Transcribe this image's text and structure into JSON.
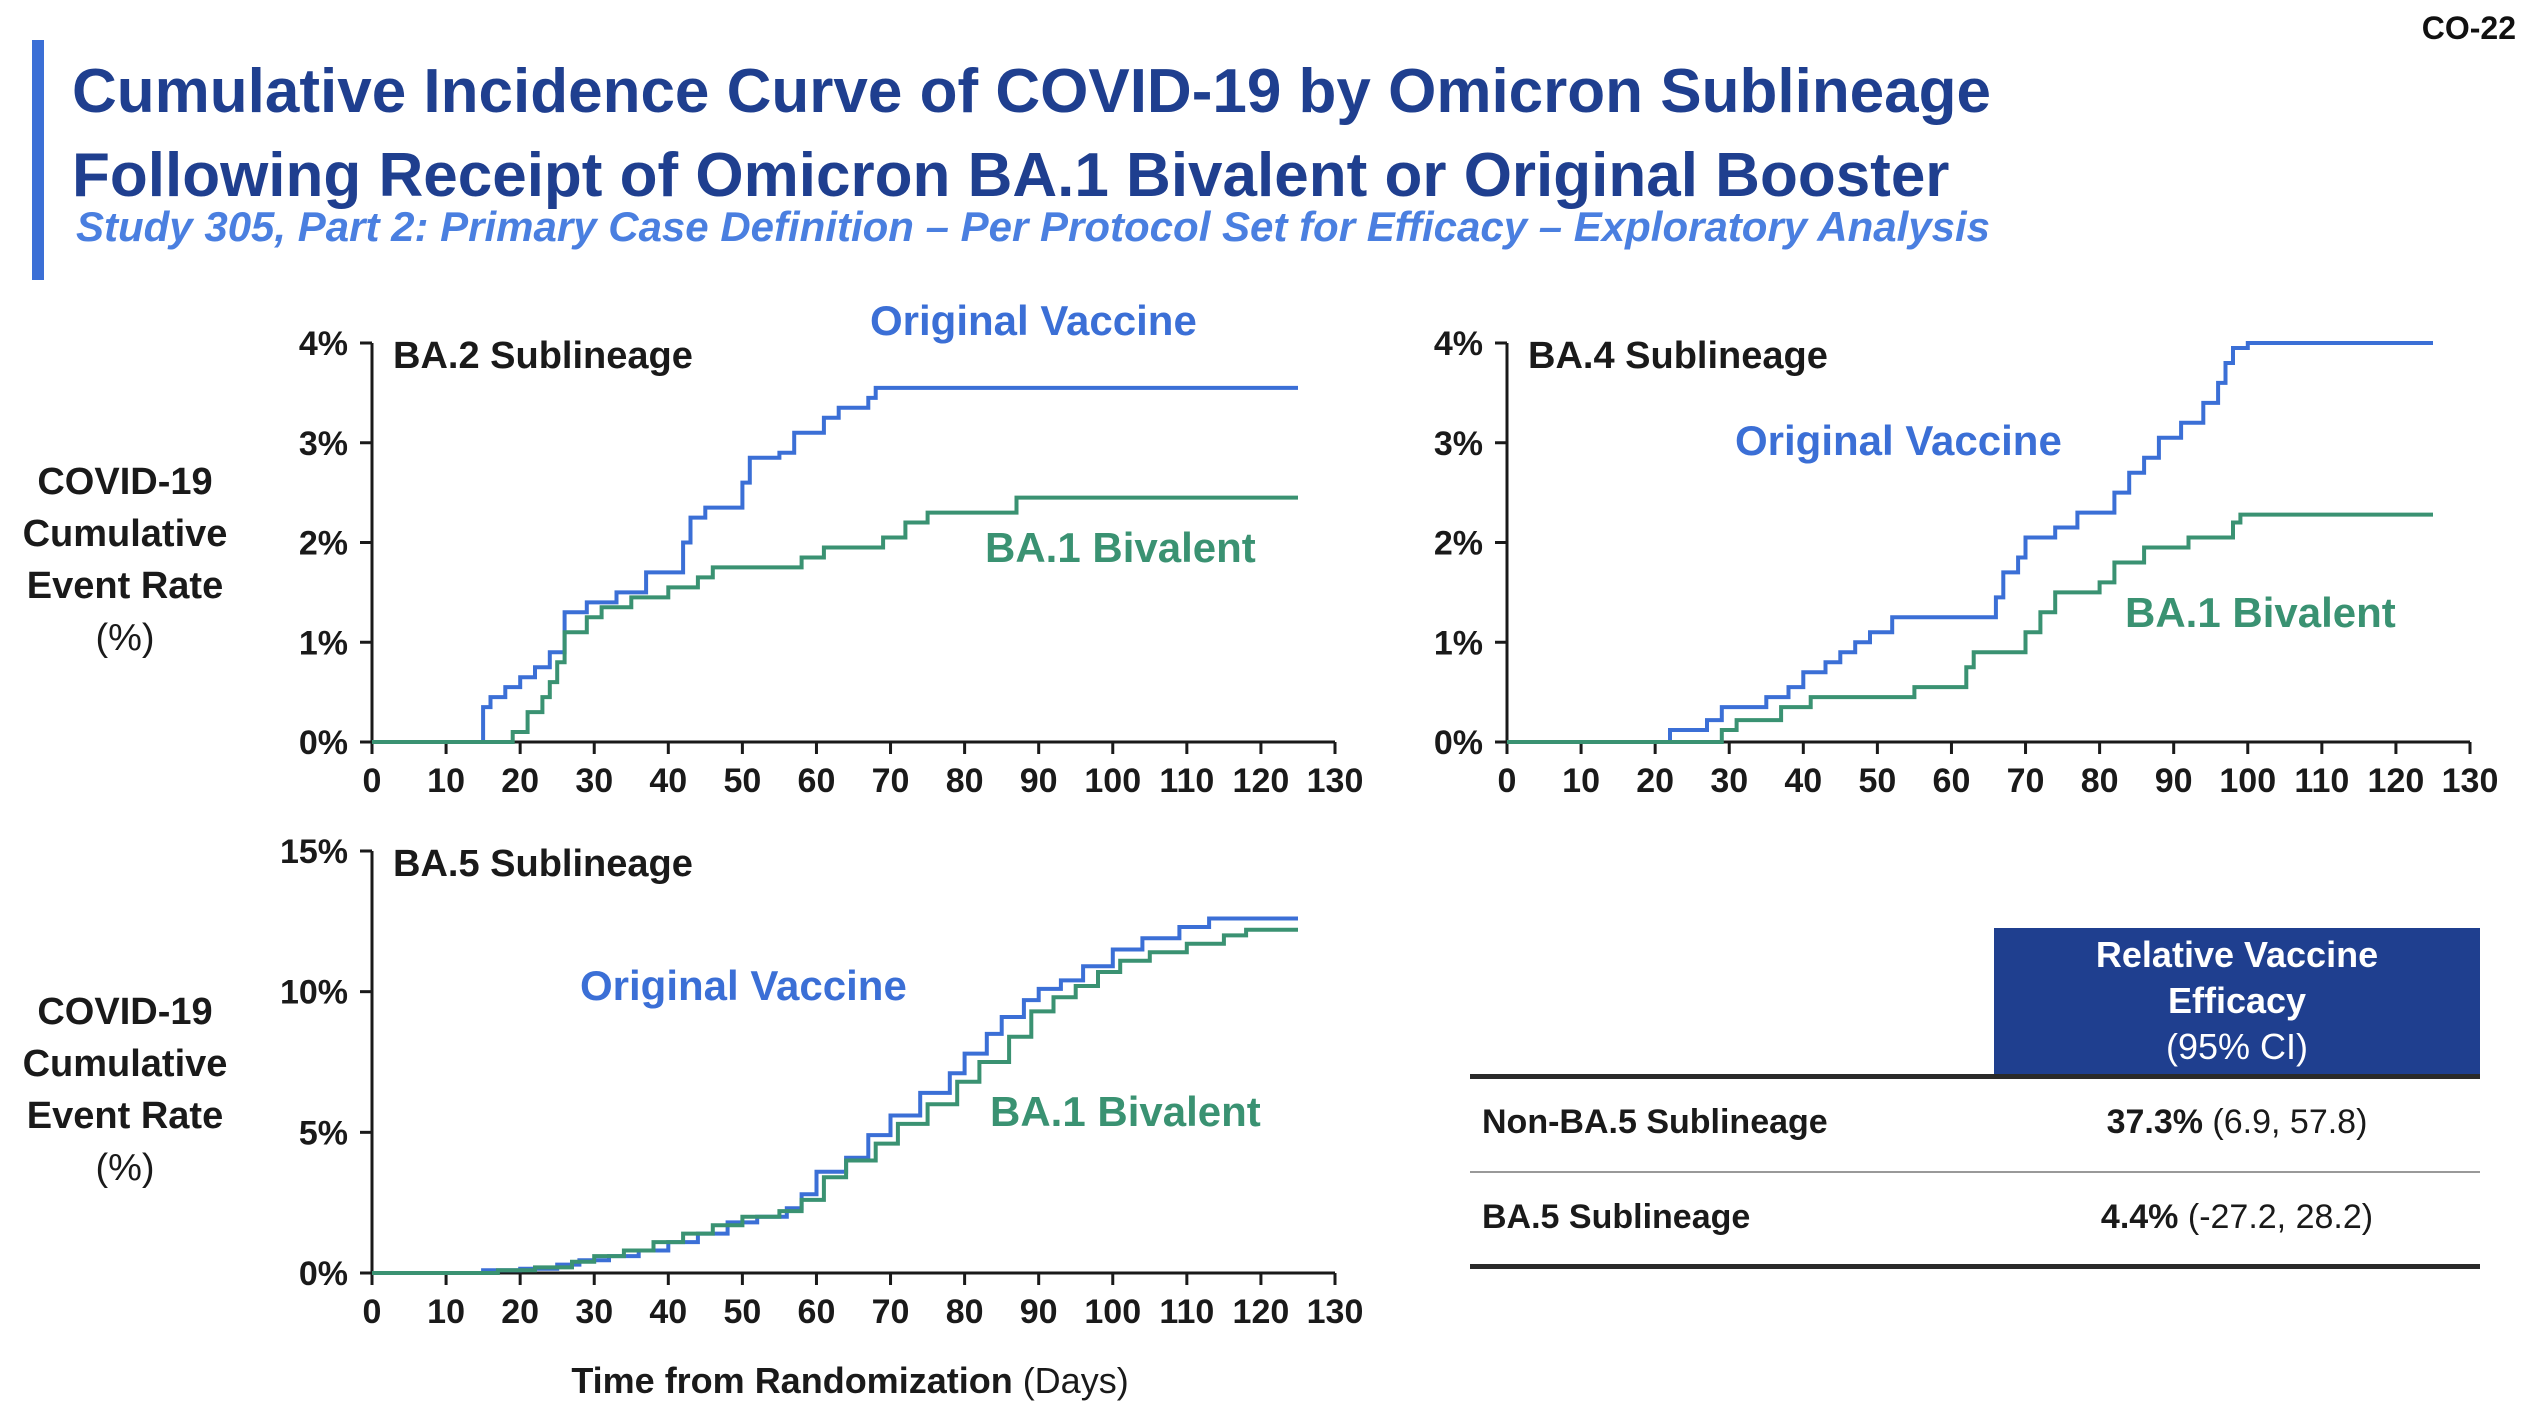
{
  "slide_id": "CO-22",
  "title_line1": "Cumulative Incidence Curve of COVID-19 by Omicron Sublineage",
  "title_line2": "Following Receipt of Omicron BA.1 Bivalent or Original Booster",
  "subtitle": "Study 305, Part 2: Primary Case Definition – Per Protocol Set for Efficacy – Exploratory Analysis",
  "y_axis_label": {
    "bold_lines": [
      "COVID-19",
      "Cumulative",
      "Event Rate"
    ],
    "unit": "(%)"
  },
  "x_axis_label": {
    "bold": "Time from Randomization",
    "unit": " (Days)"
  },
  "colors": {
    "original": "#3b6fd6",
    "bivalent": "#3a9272",
    "title": "#1f3f8f",
    "subtitle": "#4a7fe0"
  },
  "chart_data": [
    {
      "type": "line",
      "title": "BA.2 Sublineage",
      "xlabel": "Time from Randomization (Days)",
      "ylabel": "COVID-19 Cumulative Event Rate (%)",
      "xlim": [
        0,
        130
      ],
      "ylim": [
        0,
        4
      ],
      "xticks": [
        "0",
        "10",
        "20",
        "30",
        "40",
        "50",
        "60",
        "70",
        "80",
        "90",
        "100",
        "110",
        "120",
        "130"
      ],
      "yticks": [
        {
          "v": 0,
          "label": "0%"
        },
        {
          "v": 1,
          "label": "1%"
        },
        {
          "v": 2,
          "label": "2%"
        },
        {
          "v": 3,
          "label": "3%"
        },
        {
          "v": 4,
          "label": "4%"
        }
      ],
      "series": [
        {
          "name": "Original Vaccine",
          "color": "#3b6fd6",
          "points": [
            [
              0,
              0
            ],
            [
              15,
              0
            ],
            [
              15,
              0.35
            ],
            [
              16,
              0.45
            ],
            [
              18,
              0.55
            ],
            [
              20,
              0.65
            ],
            [
              22,
              0.75
            ],
            [
              24,
              0.9
            ],
            [
              26,
              1.3
            ],
            [
              29,
              1.4
            ],
            [
              33,
              1.5
            ],
            [
              37,
              1.7
            ],
            [
              42,
              2.0
            ],
            [
              43,
              2.25
            ],
            [
              45,
              2.35
            ],
            [
              50,
              2.6
            ],
            [
              51,
              2.85
            ],
            [
              55,
              2.9
            ],
            [
              57,
              3.1
            ],
            [
              61,
              3.25
            ],
            [
              63,
              3.35
            ],
            [
              67,
              3.45
            ],
            [
              68,
              3.55
            ],
            [
              125,
              3.55
            ]
          ]
        },
        {
          "name": "BA.1 Bivalent",
          "color": "#3a9272",
          "points": [
            [
              0,
              0
            ],
            [
              19,
              0
            ],
            [
              19,
              0.1
            ],
            [
              21,
              0.3
            ],
            [
              23,
              0.45
            ],
            [
              24,
              0.6
            ],
            [
              25,
              0.8
            ],
            [
              26,
              1.1
            ],
            [
              29,
              1.25
            ],
            [
              31,
              1.35
            ],
            [
              35,
              1.45
            ],
            [
              40,
              1.55
            ],
            [
              44,
              1.65
            ],
            [
              46,
              1.75
            ],
            [
              58,
              1.85
            ],
            [
              61,
              1.95
            ],
            [
              69,
              2.05
            ],
            [
              72,
              2.2
            ],
            [
              75,
              2.3
            ],
            [
              87,
              2.45
            ],
            [
              125,
              2.45
            ]
          ]
        }
      ],
      "annotations": [
        {
          "text": "Original Vaccine",
          "series": "Original Vaccine"
        },
        {
          "text": "BA.1 Bivalent",
          "series": "BA.1 Bivalent"
        }
      ]
    },
    {
      "type": "line",
      "title": "BA.4 Sublineage",
      "xlabel": "Time from Randomization (Days)",
      "ylabel": "COVID-19 Cumulative Event Rate (%)",
      "xlim": [
        0,
        130
      ],
      "ylim": [
        0,
        4
      ],
      "xticks": [
        "0",
        "10",
        "20",
        "30",
        "40",
        "50",
        "60",
        "70",
        "80",
        "90",
        "100",
        "110",
        "120",
        "130"
      ],
      "yticks": [
        {
          "v": 0,
          "label": "0%"
        },
        {
          "v": 1,
          "label": "1%"
        },
        {
          "v": 2,
          "label": "2%"
        },
        {
          "v": 3,
          "label": "3%"
        },
        {
          "v": 4,
          "label": "4%"
        }
      ],
      "series": [
        {
          "name": "Original Vaccine",
          "color": "#3b6fd6",
          "points": [
            [
              0,
              0
            ],
            [
              22,
              0
            ],
            [
              22,
              0.12
            ],
            [
              27,
              0.22
            ],
            [
              29,
              0.35
            ],
            [
              35,
              0.45
            ],
            [
              38,
              0.55
            ],
            [
              40,
              0.7
            ],
            [
              43,
              0.8
            ],
            [
              45,
              0.9
            ],
            [
              47,
              1.0
            ],
            [
              49,
              1.1
            ],
            [
              52,
              1.25
            ],
            [
              66,
              1.45
            ],
            [
              67,
              1.7
            ],
            [
              69,
              1.85
            ],
            [
              70,
              2.05
            ],
            [
              74,
              2.15
            ],
            [
              77,
              2.3
            ],
            [
              82,
              2.5
            ],
            [
              84,
              2.7
            ],
            [
              86,
              2.85
            ],
            [
              88,
              3.05
            ],
            [
              91,
              3.2
            ],
            [
              94,
              3.4
            ],
            [
              96,
              3.6
            ],
            [
              97,
              3.8
            ],
            [
              98,
              3.95
            ],
            [
              100,
              4.0
            ],
            [
              125,
              4.0
            ]
          ]
        },
        {
          "name": "BA.1 Bivalent",
          "color": "#3a9272",
          "points": [
            [
              0,
              0
            ],
            [
              29,
              0
            ],
            [
              29,
              0.12
            ],
            [
              31,
              0.22
            ],
            [
              37,
              0.35
            ],
            [
              41,
              0.45
            ],
            [
              55,
              0.55
            ],
            [
              62,
              0.75
            ],
            [
              63,
              0.9
            ],
            [
              70,
              1.1
            ],
            [
              72,
              1.3
            ],
            [
              74,
              1.5
            ],
            [
              80,
              1.6
            ],
            [
              82,
              1.8
            ],
            [
              86,
              1.95
            ],
            [
              92,
              2.05
            ],
            [
              98,
              2.2
            ],
            [
              99,
              2.28
            ],
            [
              125,
              2.28
            ]
          ]
        }
      ],
      "annotations": [
        {
          "text": "Original Vaccine",
          "series": "Original Vaccine"
        },
        {
          "text": "BA.1 Bivalent",
          "series": "BA.1 Bivalent"
        }
      ]
    },
    {
      "type": "line",
      "title": "BA.5 Sublineage",
      "xlabel": "Time from Randomization (Days)",
      "ylabel": "COVID-19 Cumulative Event Rate (%)",
      "xlim": [
        0,
        130
      ],
      "ylim": [
        0,
        15
      ],
      "xticks": [
        "0",
        "10",
        "20",
        "30",
        "40",
        "50",
        "60",
        "70",
        "80",
        "90",
        "100",
        "110",
        "120",
        "130"
      ],
      "yticks": [
        {
          "v": 0,
          "label": "0%"
        },
        {
          "v": 5,
          "label": "5%"
        },
        {
          "v": 10,
          "label": "10%"
        },
        {
          "v": 15,
          "label": "15%"
        }
      ],
      "series": [
        {
          "name": "Original Vaccine",
          "color": "#3b6fd6",
          "points": [
            [
              0,
              0
            ],
            [
              15,
              0
            ],
            [
              15,
              0.1
            ],
            [
              20,
              0.15
            ],
            [
              25,
              0.3
            ],
            [
              28,
              0.45
            ],
            [
              32,
              0.6
            ],
            [
              36,
              0.8
            ],
            [
              40,
              1.1
            ],
            [
              44,
              1.4
            ],
            [
              48,
              1.8
            ],
            [
              52,
              2.0
            ],
            [
              56,
              2.3
            ],
            [
              58,
              2.8
            ],
            [
              60,
              3.6
            ],
            [
              64,
              4.1
            ],
            [
              67,
              4.9
            ],
            [
              70,
              5.6
            ],
            [
              74,
              6.4
            ],
            [
              78,
              7.1
            ],
            [
              80,
              7.8
            ],
            [
              83,
              8.5
            ],
            [
              85,
              9.1
            ],
            [
              88,
              9.7
            ],
            [
              90,
              10.1
            ],
            [
              93,
              10.4
            ],
            [
              96,
              10.9
            ],
            [
              100,
              11.5
            ],
            [
              104,
              11.9
            ],
            [
              109,
              12.3
            ],
            [
              113,
              12.6
            ],
            [
              125,
              12.6
            ]
          ]
        },
        {
          "name": "BA.1 Bivalent",
          "color": "#3a9272",
          "points": [
            [
              0,
              0
            ],
            [
              15,
              0
            ],
            [
              17,
              0.1
            ],
            [
              22,
              0.2
            ],
            [
              27,
              0.4
            ],
            [
              30,
              0.6
            ],
            [
              34,
              0.8
            ],
            [
              38,
              1.1
            ],
            [
              42,
              1.4
            ],
            [
              46,
              1.7
            ],
            [
              50,
              2.0
            ],
            [
              55,
              2.2
            ],
            [
              58,
              2.6
            ],
            [
              61,
              3.4
            ],
            [
              64,
              4.0
            ],
            [
              68,
              4.6
            ],
            [
              71,
              5.3
            ],
            [
              75,
              6.0
            ],
            [
              79,
              6.8
            ],
            [
              82,
              7.5
            ],
            [
              86,
              8.4
            ],
            [
              89,
              9.3
            ],
            [
              92,
              9.8
            ],
            [
              95,
              10.2
            ],
            [
              98,
              10.7
            ],
            [
              101,
              11.1
            ],
            [
              105,
              11.4
            ],
            [
              110,
              11.7
            ],
            [
              115,
              12.0
            ],
            [
              118,
              12.2
            ],
            [
              125,
              12.2
            ]
          ]
        }
      ],
      "annotations": [
        {
          "text": "Original Vaccine",
          "series": "Original Vaccine"
        },
        {
          "text": "BA.1 Bivalent",
          "series": "BA.1 Bivalent"
        }
      ]
    }
  ],
  "efficacy_table": {
    "header": {
      "line1": "Relative Vaccine",
      "line2": "Efficacy",
      "line3": "(95% CI)"
    },
    "rows": [
      {
        "label": "Non-BA.5 Sublineage",
        "value": "37.3%",
        "ci": " (6.9, 57.8)"
      },
      {
        "label": "BA.5 Sublineage",
        "value": "4.4%",
        "ci": " (-27.2, 28.2)"
      }
    ]
  }
}
